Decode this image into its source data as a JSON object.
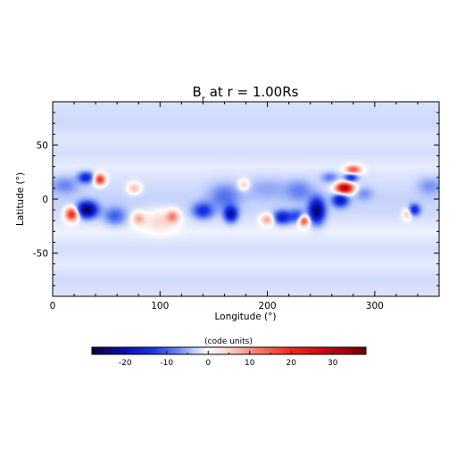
{
  "chart_data": {
    "type": "heatmap",
    "title": "B",
    "title_subscript": "r",
    "title_rest": " at r = 1.00Rs",
    "xlabel": "Longitude (°)",
    "ylabel": "Latitude (°)",
    "xlim": [
      0,
      360
    ],
    "ylim": [
      -90,
      90
    ],
    "x_ticks": [
      0,
      100,
      200,
      300
    ],
    "y_ticks": [
      -50,
      0,
      50
    ],
    "grid": false,
    "colorbar": {
      "label": "(code units)",
      "range": [
        -28,
        38
      ],
      "ticks": [
        -20,
        -10,
        0,
        10,
        20,
        30
      ],
      "colormap": [
        {
          "v": -28,
          "color": "#0c0040"
        },
        {
          "v": -20,
          "color": "#0a10b0"
        },
        {
          "v": -13,
          "color": "#1a38e8"
        },
        {
          "v": -7,
          "color": "#6f8cf4"
        },
        {
          "v": -3,
          "color": "#c6d3fb"
        },
        {
          "v": 0,
          "color": "#ffffff"
        },
        {
          "v": 5,
          "color": "#fbd2c8"
        },
        {
          "v": 12,
          "color": "#f47c6c"
        },
        {
          "v": 20,
          "color": "#f02a1c"
        },
        {
          "v": 30,
          "color": "#c00010"
        },
        {
          "v": 38,
          "color": "#6a0000"
        }
      ]
    },
    "background_field": [
      {
        "lat": 90,
        "value": -2.0
      },
      {
        "lat": 70,
        "value": -2.6
      },
      {
        "lat": 55,
        "value": -1.6
      },
      {
        "lat": 42,
        "value": -2.2
      },
      {
        "lat": 30,
        "value": -1.2
      },
      {
        "lat": 12,
        "value": -2.4
      },
      {
        "lat": 0,
        "value": -3.0
      },
      {
        "lat": -12,
        "value": -2.6
      },
      {
        "lat": -30,
        "value": -0.8
      },
      {
        "lat": -45,
        "value": -2.2
      },
      {
        "lat": -60,
        "value": -1.4
      },
      {
        "lat": -75,
        "value": -2.4
      },
      {
        "lat": -90,
        "value": -1.8
      }
    ],
    "features": [
      {
        "lon": 32,
        "lat": -10,
        "value": -24,
        "rlon": 9,
        "rlat": 7
      },
      {
        "lon": 18,
        "lat": -14,
        "value": 24,
        "rlon": 6,
        "rlat": 6
      },
      {
        "lon": 44,
        "lat": 18,
        "value": 22,
        "rlon": 5,
        "rlat": 5
      },
      {
        "lon": 31,
        "lat": 20,
        "value": -14,
        "rlon": 7,
        "rlat": 5
      },
      {
        "lon": 12,
        "lat": 13,
        "value": -5,
        "rlon": 12,
        "rlat": 8
      },
      {
        "lon": 58,
        "lat": -16,
        "value": -8,
        "rlon": 10,
        "rlat": 8
      },
      {
        "lon": 76,
        "lat": 10,
        "value": 9,
        "rlon": 6,
        "rlat": 5
      },
      {
        "lon": 80,
        "lat": -18,
        "value": 10,
        "rlon": 6,
        "rlat": 6
      },
      {
        "lon": 112,
        "lat": -16,
        "value": 12,
        "rlon": 6,
        "rlat": 6
      },
      {
        "lon": 100,
        "lat": -20,
        "value": 6,
        "rlon": 14,
        "rlat": 10
      },
      {
        "lon": 140,
        "lat": -11,
        "value": -12,
        "rlon": 9,
        "rlat": 7
      },
      {
        "lon": 166,
        "lat": -14,
        "value": -18,
        "rlon": 6,
        "rlat": 7
      },
      {
        "lon": 160,
        "lat": 2,
        "value": -6,
        "rlon": 14,
        "rlat": 12
      },
      {
        "lon": 178,
        "lat": 13,
        "value": 8,
        "rlon": 5,
        "rlat": 5
      },
      {
        "lon": 200,
        "lat": -19,
        "value": 11,
        "rlon": 6,
        "rlat": 5
      },
      {
        "lon": 214,
        "lat": -17,
        "value": -15,
        "rlon": 8,
        "rlat": 6
      },
      {
        "lon": 228,
        "lat": -16,
        "value": -10,
        "rlon": 7,
        "rlat": 6
      },
      {
        "lon": 234,
        "lat": -20,
        "value": 20,
        "rlon": 5,
        "rlat": 5
      },
      {
        "lon": 246,
        "lat": -11,
        "value": -23,
        "rlon": 7,
        "rlat": 11
      },
      {
        "lon": 230,
        "lat": 8,
        "value": -5,
        "rlon": 12,
        "rlat": 10
      },
      {
        "lon": 272,
        "lat": 10,
        "value": 34,
        "rlon": 8,
        "rlat": 5
      },
      {
        "lon": 280,
        "lat": 27,
        "value": 18,
        "rlon": 7,
        "rlat": 4
      },
      {
        "lon": 278,
        "lat": 20,
        "value": -14,
        "rlon": 6,
        "rlat": 4
      },
      {
        "lon": 268,
        "lat": -1,
        "value": -16,
        "rlon": 7,
        "rlat": 6
      },
      {
        "lon": 258,
        "lat": 20,
        "value": -6,
        "rlon": 8,
        "rlat": 5
      },
      {
        "lon": 290,
        "lat": 5,
        "value": -4,
        "rlon": 8,
        "rlat": 6
      },
      {
        "lon": 330,
        "lat": -14,
        "value": 8,
        "rlon": 4,
        "rlat": 5
      },
      {
        "lon": 337,
        "lat": -10,
        "value": -13,
        "rlon": 5,
        "rlat": 5
      },
      {
        "lon": 350,
        "lat": 12,
        "value": -4,
        "rlon": 10,
        "rlat": 8
      },
      {
        "lon": 200,
        "lat": 10,
        "value": -3,
        "rlon": 20,
        "rlat": 10
      }
    ]
  }
}
